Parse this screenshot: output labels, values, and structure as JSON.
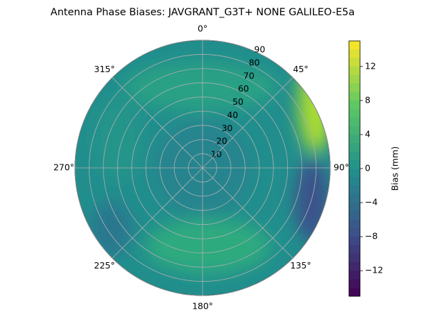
{
  "chart_data": {
    "type": "polar_contour",
    "title": "Antenna Phase Biases: JAVGRANT_G3T+   NONE GALILEO-E5a",
    "thetaticks": [
      {
        "value": 0,
        "label": "0°"
      },
      {
        "value": 45,
        "label": "45°"
      },
      {
        "value": 90,
        "label": "90°"
      },
      {
        "value": 135,
        "label": "135°"
      },
      {
        "value": 180,
        "label": "180°"
      },
      {
        "value": 225,
        "label": "225°"
      },
      {
        "value": 270,
        "label": "270°"
      },
      {
        "value": 315,
        "label": "315°"
      }
    ],
    "rlim": [
      0,
      90
    ],
    "rticks": [
      10,
      20,
      30,
      40,
      50,
      60,
      70,
      80,
      90
    ],
    "grid": true,
    "colorbar": {
      "label": "Bias (mm)",
      "clim": [
        -15,
        15
      ],
      "ticks": [
        {
          "value": -12,
          "label": "−12"
        },
        {
          "value": -8,
          "label": "−8"
        },
        {
          "value": -4,
          "label": "−4"
        },
        0,
        4,
        8,
        12
      ],
      "colormap": "viridis"
    }
  }
}
